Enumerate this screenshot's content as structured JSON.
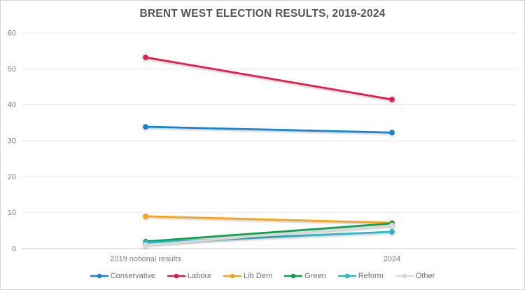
{
  "chart_data": {
    "type": "line",
    "title": "BRENT WEST ELECTION RESULTS, 2019-2024",
    "categories": [
      "2019 notional results",
      "2024"
    ],
    "series": [
      {
        "name": "Conservative",
        "color": "#1683d4",
        "values": [
          33.9,
          32.3
        ]
      },
      {
        "name": "Labour",
        "color": "#e51a4c",
        "values": [
          53.2,
          41.5
        ]
      },
      {
        "name": "Lib Dem",
        "color": "#f7a11a",
        "values": [
          9.0,
          7.2
        ]
      },
      {
        "name": "Green",
        "color": "#0da04f",
        "values": [
          2.0,
          7.0
        ]
      },
      {
        "name": "Reform",
        "color": "#29b6c9",
        "values": [
          1.7,
          4.7
        ]
      },
      {
        "name": "Other",
        "color": "#d9d9d9",
        "values": [
          1.0,
          6.5
        ]
      }
    ],
    "xlabel": "",
    "ylabel": "",
    "ylim": [
      0,
      60
    ],
    "yticks": [
      0,
      10,
      20,
      30,
      40,
      50,
      60
    ],
    "grid": true,
    "legend_position": "bottom",
    "marker": "circle",
    "tick_label_color": "#7f7f7f",
    "gridline_color": "#e9e9e9",
    "title_color": "#555555"
  }
}
